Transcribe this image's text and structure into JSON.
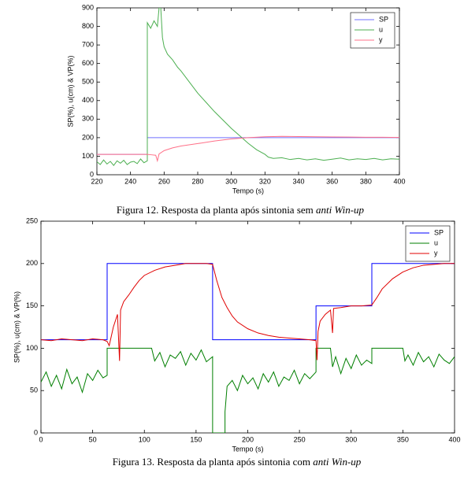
{
  "chart_data": [
    {
      "type": "line",
      "xlabel": "Tempo (s)",
      "ylabel": "SP(%), u(cm) & VP(%)",
      "caption": "Figura 12. Resposta da planta após sintonia sem",
      "caption_emphasis": "anti Win-up",
      "xlim": [
        220,
        400
      ],
      "ylim": [
        0,
        900
      ],
      "xticks": [
        220,
        240,
        260,
        280,
        300,
        320,
        340,
        360,
        380,
        400
      ],
      "yticks": [
        0,
        100,
        200,
        300,
        400,
        500,
        600,
        700,
        800,
        900
      ],
      "legend": "upper right",
      "series": [
        {
          "name": "SP",
          "color": "#7070ff",
          "x": [
            220,
            250,
            250,
            400
          ],
          "values": [
            110,
            110,
            200,
            200
          ]
        },
        {
          "name": "u",
          "color": "#4caf50",
          "x": [
            220,
            222,
            224,
            226,
            228,
            230,
            232,
            234,
            236,
            238,
            240,
            242,
            244,
            246,
            248,
            250,
            250,
            252,
            254,
            256,
            257,
            258,
            259,
            260,
            262,
            265,
            268,
            270,
            275,
            280,
            285,
            290,
            295,
            300,
            305,
            310,
            315,
            320,
            322,
            325,
            330,
            335,
            340,
            345,
            350,
            355,
            360,
            365,
            370,
            375,
            380,
            385,
            390,
            395,
            400
          ],
          "values": [
            70,
            55,
            80,
            58,
            72,
            50,
            75,
            62,
            78,
            55,
            68,
            72,
            60,
            85,
            65,
            75,
            820,
            790,
            830,
            800,
            900,
            900,
            740,
            690,
            650,
            620,
            580,
            560,
            500,
            440,
            390,
            340,
            295,
            250,
            210,
            170,
            135,
            110,
            95,
            88,
            92,
            82,
            88,
            80,
            86,
            78,
            84,
            90,
            80,
            86,
            82,
            88,
            80,
            86,
            84
          ]
        },
        {
          "name": "y",
          "color": "#ff7088",
          "x": [
            220,
            230,
            240,
            250,
            252,
            255,
            256,
            257,
            260,
            265,
            270,
            280,
            290,
            300,
            310,
            320,
            330,
            340,
            350,
            360,
            370,
            380,
            390,
            400
          ],
          "values": [
            110,
            110,
            110,
            110,
            108,
            105,
            75,
            112,
            130,
            145,
            155,
            168,
            182,
            193,
            200,
            205,
            207,
            206,
            205,
            204,
            203,
            202,
            202,
            201
          ]
        }
      ]
    },
    {
      "type": "line",
      "xlabel": "Tempo (s)",
      "ylabel": "SP(%), u(cm) & VP(%)",
      "caption": "Figura 13. Resposta da planta após sintonia com",
      "caption_emphasis": "anti Win-up",
      "xlim": [
        0,
        400
      ],
      "ylim": [
        0,
        250
      ],
      "xticks": [
        0,
        50,
        100,
        150,
        200,
        250,
        300,
        350,
        400
      ],
      "yticks": [
        0,
        50,
        100,
        150,
        200,
        250
      ],
      "legend": "upper right",
      "series": [
        {
          "name": "SP",
          "color": "#0000ff",
          "x": [
            0,
            64,
            64,
            166,
            166,
            266,
            266,
            320,
            320,
            400
          ],
          "values": [
            110,
            110,
            200,
            200,
            110,
            110,
            150,
            150,
            200,
            200
          ]
        },
        {
          "name": "u",
          "color": "#007f00",
          "x": [
            0,
            5,
            10,
            15,
            20,
            25,
            30,
            35,
            40,
            45,
            50,
            55,
            60,
            64,
            64,
            107,
            110,
            115,
            120,
            125,
            130,
            135,
            140,
            145,
            150,
            155,
            160,
            166,
            166,
            178,
            178,
            180,
            185,
            190,
            195,
            200,
            205,
            210,
            215,
            220,
            225,
            230,
            235,
            240,
            245,
            250,
            255,
            260,
            266,
            266,
            280,
            282,
            285,
            290,
            295,
            300,
            305,
            310,
            315,
            320,
            320,
            350,
            352,
            355,
            360,
            365,
            370,
            375,
            380,
            385,
            390,
            395,
            400
          ],
          "values": [
            60,
            72,
            55,
            68,
            52,
            75,
            58,
            66,
            48,
            70,
            62,
            74,
            65,
            68,
            100,
            100,
            85,
            95,
            78,
            92,
            88,
            96,
            80,
            94,
            86,
            98,
            84,
            90,
            0,
            0,
            25,
            55,
            62,
            50,
            68,
            58,
            65,
            52,
            70,
            60,
            72,
            55,
            66,
            62,
            74,
            58,
            70,
            64,
            72,
            100,
            100,
            78,
            90,
            70,
            88,
            76,
            92,
            80,
            86,
            82,
            100,
            100,
            85,
            92,
            80,
            95,
            84,
            90,
            78,
            93,
            86,
            82,
            90
          ]
        },
        {
          "name": "y",
          "color": "#e00000",
          "x": [
            0,
            10,
            20,
            30,
            40,
            50,
            60,
            64,
            66,
            70,
            74,
            76,
            77,
            80,
            85,
            90,
            95,
            100,
            110,
            120,
            130,
            140,
            150,
            160,
            166,
            170,
            175,
            180,
            185,
            190,
            200,
            210,
            220,
            230,
            240,
            250,
            260,
            266,
            267,
            268,
            270,
            275,
            280,
            282,
            283,
            290,
            300,
            310,
            320,
            325,
            330,
            340,
            350,
            360,
            370,
            380,
            390,
            400
          ],
          "values": [
            110,
            109,
            111,
            110,
            109,
            111,
            110,
            108,
            103,
            125,
            140,
            85,
            145,
            155,
            163,
            172,
            180,
            186,
            192,
            196,
            198,
            200,
            200,
            200,
            199,
            180,
            160,
            148,
            138,
            131,
            123,
            118,
            115,
            113,
            112,
            111,
            110,
            109,
            86,
            120,
            132,
            140,
            145,
            118,
            147,
            148,
            150,
            150,
            151,
            160,
            170,
            182,
            190,
            195,
            198,
            199,
            200,
            200
          ]
        }
      ]
    }
  ]
}
